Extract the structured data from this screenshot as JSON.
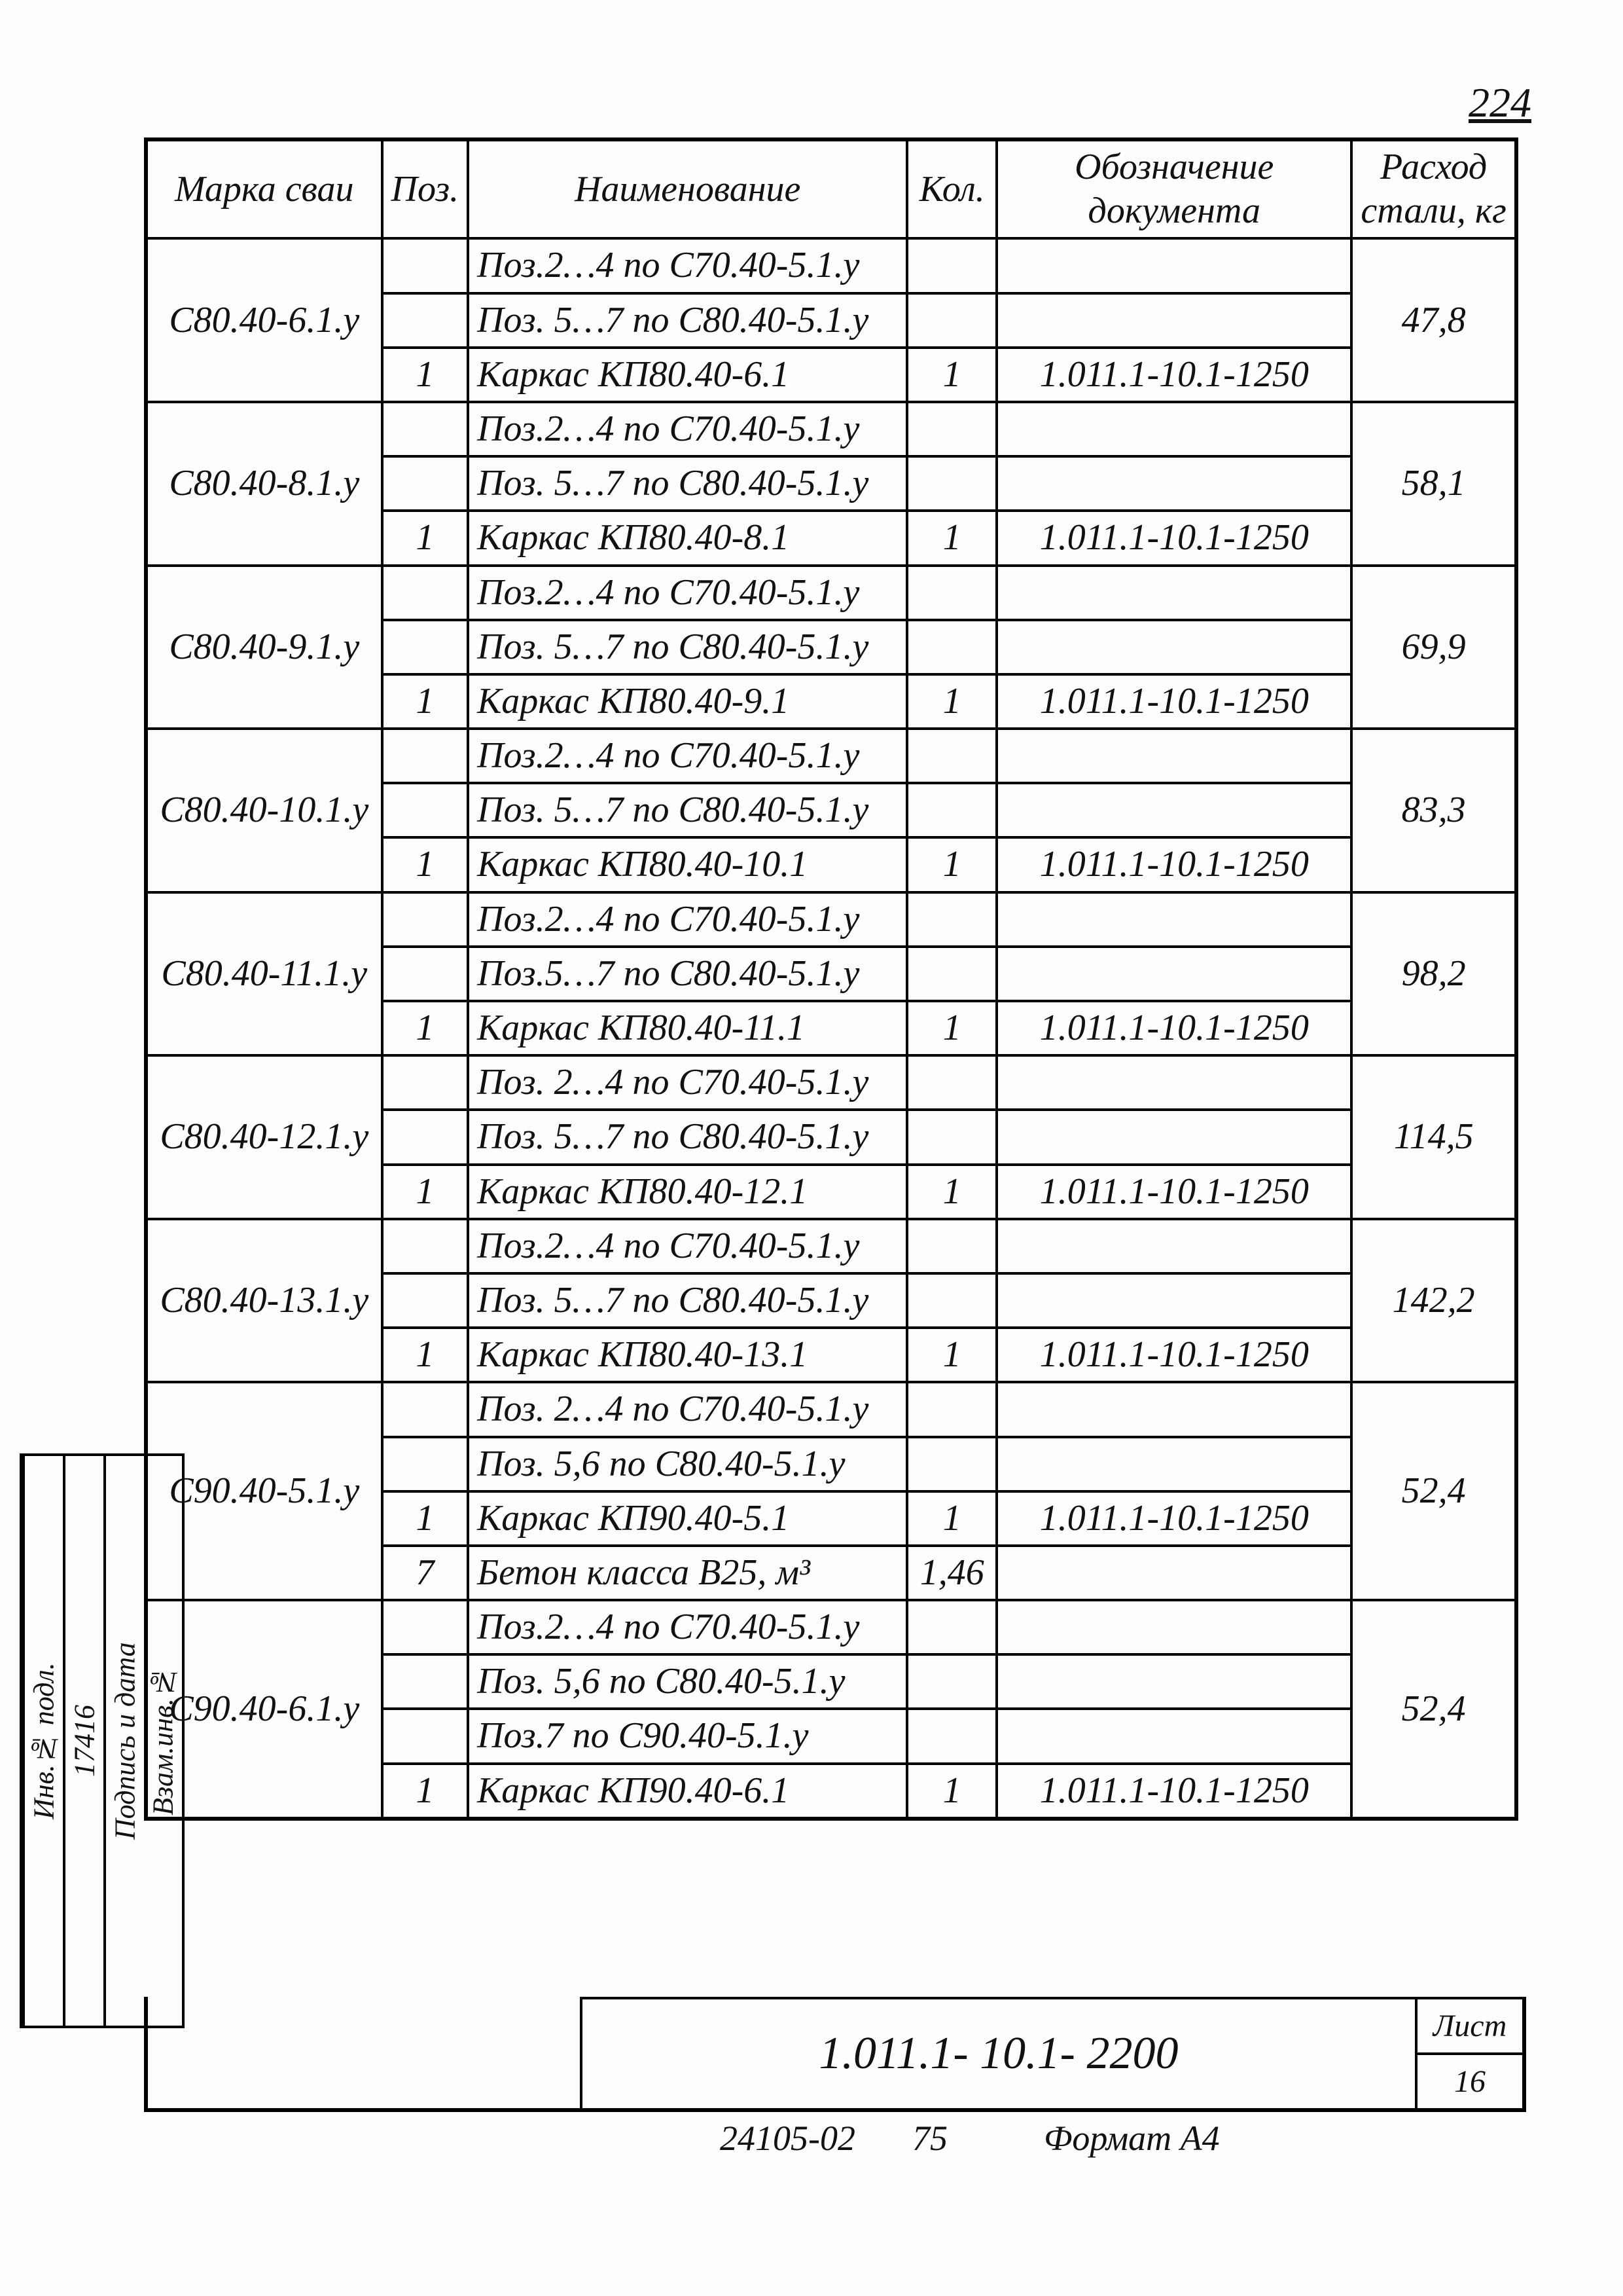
{
  "page_number": "224",
  "headers": {
    "marka": "Марка сваи",
    "poz": "Поз.",
    "naim": "Наименование",
    "kol": "Кол.",
    "doc": "Обозначение документа",
    "ras": "Расход стали, кг"
  },
  "groups": [
    {
      "marka": "С80.40-6.1.у",
      "ras": "47,8",
      "rows": [
        {
          "poz": "",
          "naim": "Поз.2…4 по С70.40-5.1.у",
          "kol": "",
          "doc": ""
        },
        {
          "poz": "",
          "naim": "Поз. 5…7 по С80.40-5.1.у",
          "kol": "",
          "doc": ""
        },
        {
          "poz": "1",
          "naim": "Каркас КП80.40-6.1",
          "kol": "1",
          "doc": "1.011.1-10.1-1250"
        }
      ]
    },
    {
      "marka": "С80.40-8.1.у",
      "ras": "58,1",
      "rows": [
        {
          "poz": "",
          "naim": "Поз.2…4 по С70.40-5.1.у",
          "kol": "",
          "doc": ""
        },
        {
          "poz": "",
          "naim": "Поз. 5…7 по С80.40-5.1.у",
          "kol": "",
          "doc": ""
        },
        {
          "poz": "1",
          "naim": "Каркас КП80.40-8.1",
          "kol": "1",
          "doc": "1.011.1-10.1-1250"
        }
      ]
    },
    {
      "marka": "С80.40-9.1.у",
      "ras": "69,9",
      "rows": [
        {
          "poz": "",
          "naim": "Поз.2…4 по С70.40-5.1.у",
          "kol": "",
          "doc": ""
        },
        {
          "poz": "",
          "naim": "Поз. 5…7 по С80.40-5.1.у",
          "kol": "",
          "doc": ""
        },
        {
          "poz": "1",
          "naim": "Каркас КП80.40-9.1",
          "kol": "1",
          "doc": "1.011.1-10.1-1250"
        }
      ]
    },
    {
      "marka": "С80.40-10.1.у",
      "ras": "83,3",
      "rows": [
        {
          "poz": "",
          "naim": "Поз.2…4 по С70.40-5.1.у",
          "kol": "",
          "doc": ""
        },
        {
          "poz": "",
          "naim": "Поз. 5…7 по С80.40-5.1.у",
          "kol": "",
          "doc": ""
        },
        {
          "poz": "1",
          "naim": "Каркас КП80.40-10.1",
          "kol": "1",
          "doc": "1.011.1-10.1-1250"
        }
      ]
    },
    {
      "marka": "С80.40-11.1.у",
      "ras": "98,2",
      "rows": [
        {
          "poz": "",
          "naim": "Поз.2…4 по С70.40-5.1.у",
          "kol": "",
          "doc": ""
        },
        {
          "poz": "",
          "naim": "Поз.5…7 по С80.40-5.1.у",
          "kol": "",
          "doc": ""
        },
        {
          "poz": "1",
          "naim": "Каркас КП80.40-11.1",
          "kol": "1",
          "doc": "1.011.1-10.1-1250"
        }
      ]
    },
    {
      "marka": "С80.40-12.1.у",
      "ras": "114,5",
      "rows": [
        {
          "poz": "",
          "naim": "Поз. 2…4 по С70.40-5.1.у",
          "kol": "",
          "doc": ""
        },
        {
          "poz": "",
          "naim": "Поз. 5…7 по С80.40-5.1.у",
          "kol": "",
          "doc": ""
        },
        {
          "poz": "1",
          "naim": "Каркас КП80.40-12.1",
          "kol": "1",
          "doc": "1.011.1-10.1-1250"
        }
      ]
    },
    {
      "marka": "С80.40-13.1.у",
      "ras": "142,2",
      "rows": [
        {
          "poz": "",
          "naim": "Поз.2…4 по С70.40-5.1.у",
          "kol": "",
          "doc": ""
        },
        {
          "poz": "",
          "naim": "Поз. 5…7 по С80.40-5.1.у",
          "kol": "",
          "doc": ""
        },
        {
          "poz": "1",
          "naim": "Каркас КП80.40-13.1",
          "kol": "1",
          "doc": "1.011.1-10.1-1250"
        }
      ]
    },
    {
      "marka": "С90.40-5.1.у",
      "ras": "52,4",
      "rows": [
        {
          "poz": "",
          "naim": "Поз. 2…4 по С70.40-5.1.у",
          "kol": "",
          "doc": ""
        },
        {
          "poz": "",
          "naim": "Поз. 5,6 по С80.40-5.1.у",
          "kol": "",
          "doc": ""
        },
        {
          "poz": "1",
          "naim": "Каркас КП90.40-5.1",
          "kol": "1",
          "doc": "1.011.1-10.1-1250"
        },
        {
          "poz": "7",
          "naim": "Бетон класса В25, м³",
          "kol": "1,46",
          "doc": ""
        }
      ]
    },
    {
      "marka": "С90.40-6.1.у",
      "ras": "52,4",
      "rows": [
        {
          "poz": "",
          "naim": "Поз.2…4 по С70.40-5.1.у",
          "kol": "",
          "doc": ""
        },
        {
          "poz": "",
          "naim": "Поз. 5,6 по С80.40-5.1.у",
          "kol": "",
          "doc": ""
        },
        {
          "poz": "",
          "naim": "Поз.7 по С90.40-5.1.у",
          "kol": "",
          "doc": ""
        },
        {
          "poz": "1",
          "naim": "Каркас КП90.40-6.1",
          "kol": "1",
          "doc": "1.011.1-10.1-1250"
        }
      ]
    }
  ],
  "side": {
    "c1": "Инв.№ подл.",
    "c2": "17416",
    "c3": "Подпись и дата",
    "c4": "Взам.инв.№"
  },
  "footer": {
    "doc": "1.011.1- 10.1- 2200",
    "list_label": "Лист",
    "list_num": "16"
  },
  "bottom": {
    "a": "24105-02",
    "b": "75",
    "c": "Формат А4"
  }
}
